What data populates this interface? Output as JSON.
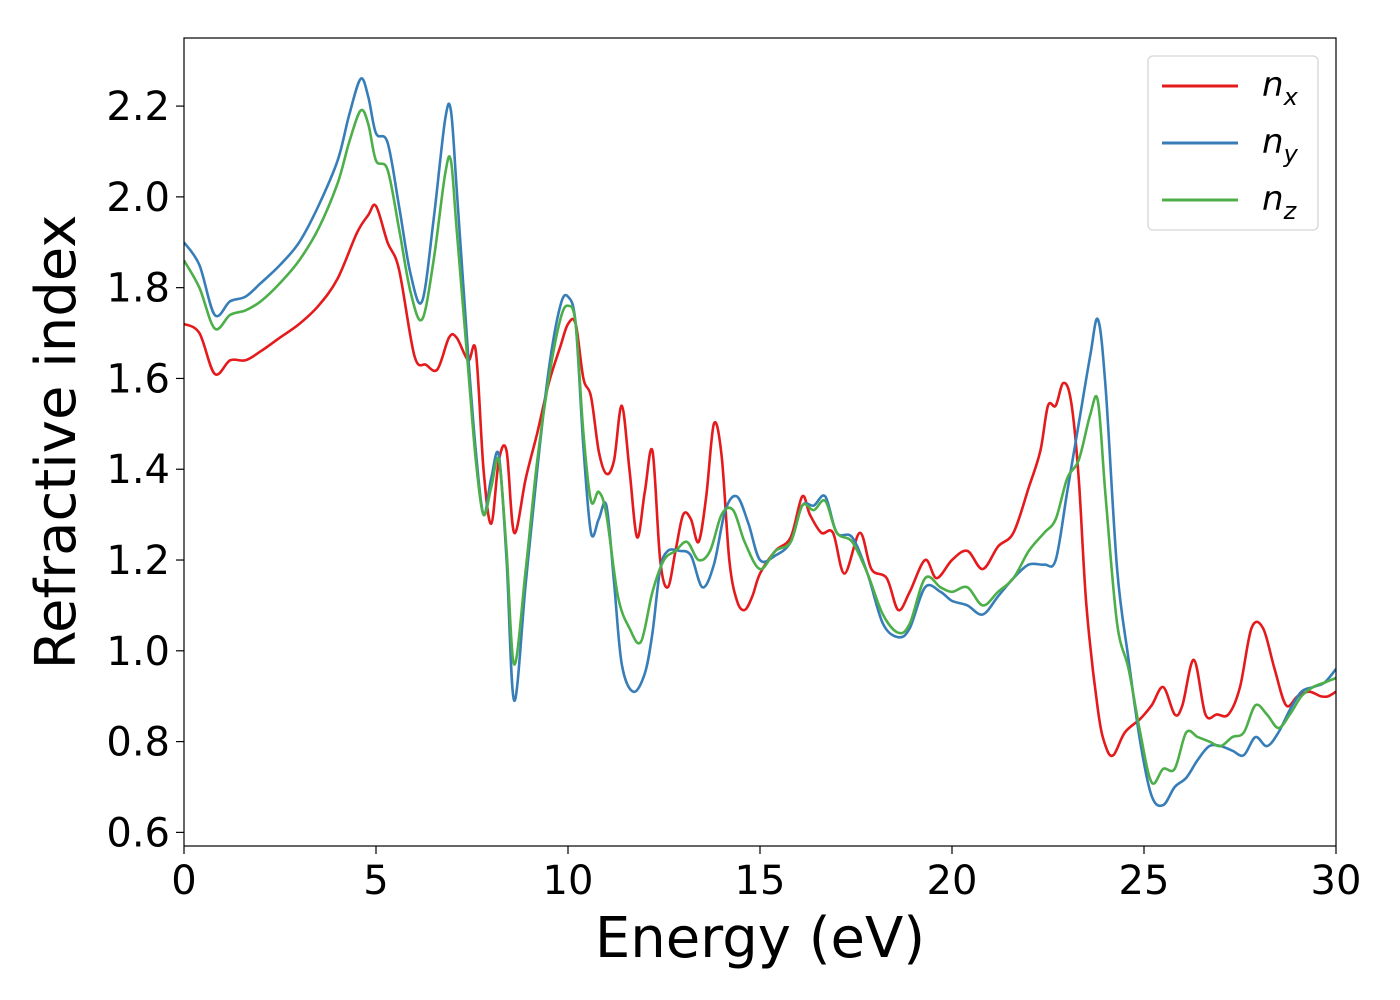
{
  "chart_data": {
    "type": "line",
    "xlabel": "Energy (eV)",
    "ylabel": "Refractive index",
    "xlim": [
      0,
      30
    ],
    "ylim": [
      0.57,
      2.35
    ],
    "xticks": [
      0,
      5,
      10,
      15,
      20,
      25,
      30
    ],
    "xtick_labels": [
      "0",
      "5",
      "10",
      "15",
      "20",
      "25",
      "30"
    ],
    "yticks": [
      0.6,
      0.8,
      1.0,
      1.2,
      1.4,
      1.6,
      1.8,
      2.0,
      2.2
    ],
    "ytick_labels": [
      "0.6",
      "0.8",
      "1.0",
      "1.2",
      "1.4",
      "1.6",
      "1.8",
      "2.0",
      "2.2"
    ],
    "grid": false,
    "legend_position": "top-right",
    "series": [
      {
        "name_base": "n",
        "name_sub": "x",
        "color": "#e41a1c",
        "x": [
          0,
          0.4,
          0.8,
          1.2,
          1.6,
          2.0,
          2.5,
          3.0,
          3.5,
          4.0,
          4.5,
          4.8,
          5.0,
          5.3,
          5.6,
          6.0,
          6.3,
          6.6,
          6.9,
          7.1,
          7.4,
          7.6,
          7.8,
          8.0,
          8.2,
          8.4,
          8.6,
          8.9,
          9.2,
          9.5,
          9.8,
          10.0,
          10.2,
          10.4,
          10.6,
          10.8,
          11.0,
          11.2,
          11.4,
          11.6,
          11.8,
          12.0,
          12.2,
          12.4,
          12.6,
          12.8,
          13.0,
          13.2,
          13.4,
          13.6,
          13.8,
          14.0,
          14.2,
          14.4,
          14.6,
          14.8,
          15.0,
          15.4,
          15.8,
          16.1,
          16.3,
          16.6,
          16.9,
          17.2,
          17.6,
          17.9,
          18.3,
          18.6,
          18.9,
          19.3,
          19.6,
          20.0,
          20.4,
          20.8,
          21.2,
          21.6,
          22.0,
          22.3,
          22.5,
          22.7,
          22.9,
          23.1,
          23.3,
          23.5,
          23.8,
          24.0,
          24.2,
          24.5,
          24.9,
          25.2,
          25.5,
          25.8,
          26.0,
          26.3,
          26.6,
          26.9,
          27.2,
          27.5,
          27.8,
          28.1,
          28.4,
          28.7,
          29.0,
          29.3,
          29.6,
          29.8,
          30.0
        ],
        "y": [
          1.72,
          1.7,
          1.61,
          1.64,
          1.64,
          1.66,
          1.69,
          1.72,
          1.76,
          1.82,
          1.92,
          1.96,
          1.98,
          1.9,
          1.84,
          1.65,
          1.63,
          1.62,
          1.69,
          1.69,
          1.64,
          1.66,
          1.4,
          1.28,
          1.42,
          1.44,
          1.26,
          1.38,
          1.48,
          1.59,
          1.67,
          1.72,
          1.72,
          1.6,
          1.56,
          1.44,
          1.39,
          1.42,
          1.54,
          1.4,
          1.25,
          1.35,
          1.44,
          1.2,
          1.14,
          1.22,
          1.3,
          1.29,
          1.24,
          1.34,
          1.5,
          1.43,
          1.2,
          1.11,
          1.09,
          1.12,
          1.17,
          1.22,
          1.25,
          1.34,
          1.3,
          1.26,
          1.26,
          1.17,
          1.26,
          1.18,
          1.16,
          1.09,
          1.13,
          1.2,
          1.16,
          1.2,
          1.22,
          1.18,
          1.23,
          1.26,
          1.36,
          1.44,
          1.54,
          1.54,
          1.59,
          1.55,
          1.38,
          1.1,
          0.87,
          0.79,
          0.77,
          0.82,
          0.85,
          0.88,
          0.92,
          0.86,
          0.88,
          0.98,
          0.86,
          0.86,
          0.86,
          0.92,
          1.05,
          1.05,
          0.96,
          0.88,
          0.9,
          0.91,
          0.9,
          0.9,
          0.91
        ]
      },
      {
        "name_base": "n",
        "name_sub": "y",
        "color": "#377eb8",
        "x": [
          0,
          0.4,
          0.8,
          1.2,
          1.6,
          2.0,
          2.5,
          3.0,
          3.5,
          4.0,
          4.3,
          4.6,
          4.8,
          5.0,
          5.3,
          5.6,
          5.9,
          6.2,
          6.5,
          6.8,
          6.95,
          7.1,
          7.4,
          7.6,
          7.8,
          8.0,
          8.2,
          8.4,
          8.6,
          8.9,
          9.2,
          9.5,
          9.8,
          10.0,
          10.2,
          10.4,
          10.6,
          10.8,
          11.0,
          11.2,
          11.4,
          11.7,
          12.0,
          12.2,
          12.4,
          12.6,
          12.9,
          13.2,
          13.5,
          13.8,
          14.1,
          14.4,
          14.7,
          15.0,
          15.4,
          15.8,
          16.1,
          16.4,
          16.7,
          17.0,
          17.4,
          17.8,
          18.2,
          18.6,
          18.9,
          19.3,
          19.7,
          20.0,
          20.4,
          20.8,
          21.2,
          21.6,
          22.0,
          22.4,
          22.7,
          23.0,
          23.3,
          23.6,
          23.8,
          24.0,
          24.3,
          24.6,
          24.9,
          25.2,
          25.5,
          25.8,
          26.1,
          26.4,
          26.7,
          27.0,
          27.3,
          27.6,
          27.9,
          28.2,
          28.5,
          28.8,
          29.1,
          29.4,
          29.7,
          30.0
        ],
        "y": [
          1.9,
          1.85,
          1.74,
          1.77,
          1.78,
          1.81,
          1.85,
          1.9,
          1.98,
          2.08,
          2.18,
          2.26,
          2.22,
          2.14,
          2.12,
          1.98,
          1.83,
          1.77,
          1.95,
          2.17,
          2.19,
          2.02,
          1.65,
          1.44,
          1.3,
          1.38,
          1.43,
          1.2,
          0.89,
          1.15,
          1.4,
          1.62,
          1.76,
          1.78,
          1.72,
          1.45,
          1.26,
          1.29,
          1.32,
          1.15,
          0.97,
          0.91,
          0.95,
          1.04,
          1.18,
          1.22,
          1.22,
          1.21,
          1.14,
          1.19,
          1.31,
          1.34,
          1.28,
          1.2,
          1.21,
          1.24,
          1.32,
          1.32,
          1.34,
          1.26,
          1.25,
          1.17,
          1.06,
          1.03,
          1.05,
          1.14,
          1.13,
          1.11,
          1.1,
          1.08,
          1.12,
          1.16,
          1.19,
          1.19,
          1.2,
          1.35,
          1.5,
          1.65,
          1.73,
          1.58,
          1.18,
          0.98,
          0.8,
          0.68,
          0.66,
          0.7,
          0.72,
          0.76,
          0.79,
          0.79,
          0.78,
          0.77,
          0.81,
          0.79,
          0.82,
          0.87,
          0.91,
          0.92,
          0.93,
          0.96
        ]
      },
      {
        "name_base": "n",
        "name_sub": "z",
        "color": "#4daf4a",
        "x": [
          0,
          0.4,
          0.8,
          1.2,
          1.6,
          2.0,
          2.5,
          3.0,
          3.5,
          4.0,
          4.3,
          4.6,
          4.8,
          5.0,
          5.3,
          5.6,
          5.9,
          6.2,
          6.5,
          6.8,
          6.95,
          7.1,
          7.4,
          7.6,
          7.8,
          8.0,
          8.2,
          8.4,
          8.6,
          8.9,
          9.2,
          9.5,
          9.8,
          10.0,
          10.2,
          10.4,
          10.6,
          10.8,
          11.0,
          11.3,
          11.6,
          11.9,
          12.2,
          12.5,
          12.8,
          13.1,
          13.4,
          13.7,
          14.0,
          14.3,
          14.6,
          15.0,
          15.4,
          15.8,
          16.1,
          16.4,
          16.7,
          17.0,
          17.4,
          17.8,
          18.2,
          18.6,
          18.9,
          19.3,
          19.7,
          20.0,
          20.4,
          20.8,
          21.2,
          21.6,
          22.0,
          22.4,
          22.7,
          23.0,
          23.3,
          23.6,
          23.8,
          24.0,
          24.3,
          24.6,
          24.9,
          25.2,
          25.5,
          25.8,
          26.1,
          26.4,
          26.7,
          27.0,
          27.3,
          27.6,
          27.9,
          28.2,
          28.5,
          28.8,
          29.1,
          29.4,
          29.7,
          30.0
        ],
        "y": [
          1.86,
          1.8,
          1.71,
          1.74,
          1.75,
          1.77,
          1.81,
          1.86,
          1.93,
          2.03,
          2.12,
          2.19,
          2.16,
          2.08,
          2.06,
          1.93,
          1.79,
          1.73,
          1.86,
          2.05,
          2.08,
          1.93,
          1.62,
          1.42,
          1.3,
          1.36,
          1.42,
          1.22,
          0.97,
          1.18,
          1.42,
          1.6,
          1.73,
          1.76,
          1.72,
          1.48,
          1.33,
          1.35,
          1.3,
          1.12,
          1.05,
          1.02,
          1.13,
          1.2,
          1.22,
          1.24,
          1.2,
          1.22,
          1.3,
          1.31,
          1.24,
          1.18,
          1.22,
          1.24,
          1.32,
          1.31,
          1.33,
          1.26,
          1.24,
          1.17,
          1.08,
          1.04,
          1.06,
          1.16,
          1.14,
          1.13,
          1.14,
          1.1,
          1.13,
          1.16,
          1.22,
          1.26,
          1.29,
          1.38,
          1.42,
          1.52,
          1.55,
          1.34,
          1.06,
          0.96,
          0.82,
          0.71,
          0.74,
          0.74,
          0.82,
          0.81,
          0.8,
          0.79,
          0.81,
          0.82,
          0.88,
          0.86,
          0.83,
          0.86,
          0.9,
          0.92,
          0.93,
          0.94
        ]
      }
    ]
  }
}
